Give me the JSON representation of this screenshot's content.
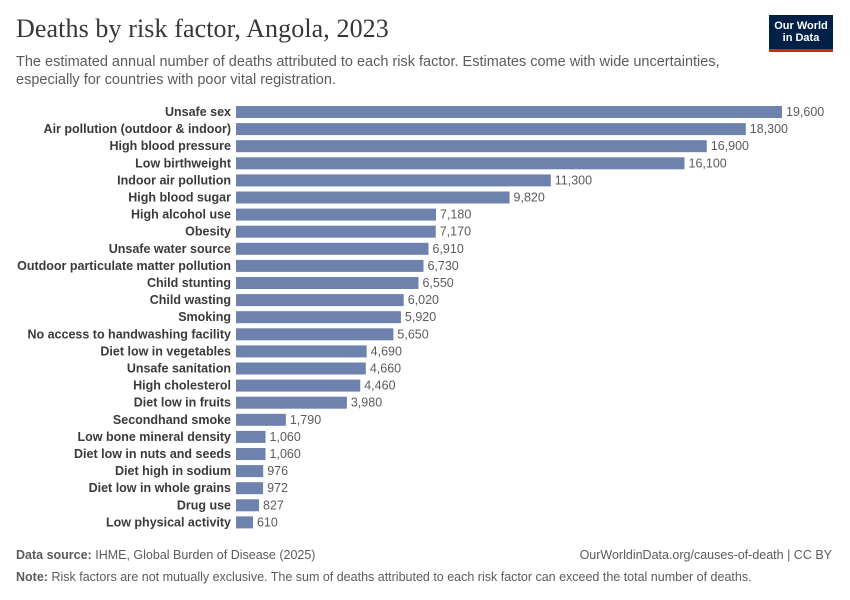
{
  "header": {
    "title": "Deaths by risk factor, Angola, 2023",
    "subtitle": "The estimated annual number of deaths attributed to each risk factor. Estimates come with wide uncertainties, especially for countries with poor vital registration.",
    "logo_line1": "Our World",
    "logo_line2": "in Data"
  },
  "chart_data": {
    "type": "bar",
    "orientation": "horizontal",
    "title": "Deaths by risk factor, Angola, 2023",
    "xlabel": "",
    "ylabel": "",
    "xlim": [
      0,
      19600
    ],
    "grid": false,
    "bar_color": "#6d82ad",
    "categories": [
      "Unsafe sex",
      "Air pollution (outdoor & indoor)",
      "High blood pressure",
      "Low birthweight",
      "Indoor air pollution",
      "High blood sugar",
      "High alcohol use",
      "Obesity",
      "Unsafe water source",
      "Outdoor particulate matter pollution",
      "Child stunting",
      "Child wasting",
      "Smoking",
      "No access to handwashing facility",
      "Diet low in vegetables",
      "Unsafe sanitation",
      "High cholesterol",
      "Diet low in fruits",
      "Secondhand smoke",
      "Low bone mineral density",
      "Diet low in nuts and seeds",
      "Diet high in sodium",
      "Diet low in whole grains",
      "Drug use",
      "Low physical activity"
    ],
    "values": [
      19600,
      18300,
      16900,
      16100,
      11300,
      9820,
      7180,
      7170,
      6910,
      6730,
      6550,
      6020,
      5920,
      5650,
      4690,
      4660,
      4460,
      3980,
      1790,
      1060,
      1060,
      976,
      972,
      827,
      610
    ],
    "value_labels": [
      "19,600",
      "18,300",
      "16,900",
      "16,100",
      "11,300",
      "9,820",
      "7,180",
      "7,170",
      "6,910",
      "6,730",
      "6,550",
      "6,020",
      "5,920",
      "5,650",
      "4,690",
      "4,660",
      "4,460",
      "3,980",
      "1,790",
      "1,060",
      "1,060",
      "976",
      "972",
      "827",
      "610"
    ]
  },
  "footer": {
    "source_label": "Data source:",
    "source_text": "IHME, Global Burden of Disease (2025)",
    "url_text": "OurWorldinData.org/causes-of-death | CC BY",
    "note_label": "Note:",
    "note_text": "Risk factors are not mutually exclusive. The sum of deaths attributed to each risk factor can exceed the total number of deaths."
  }
}
